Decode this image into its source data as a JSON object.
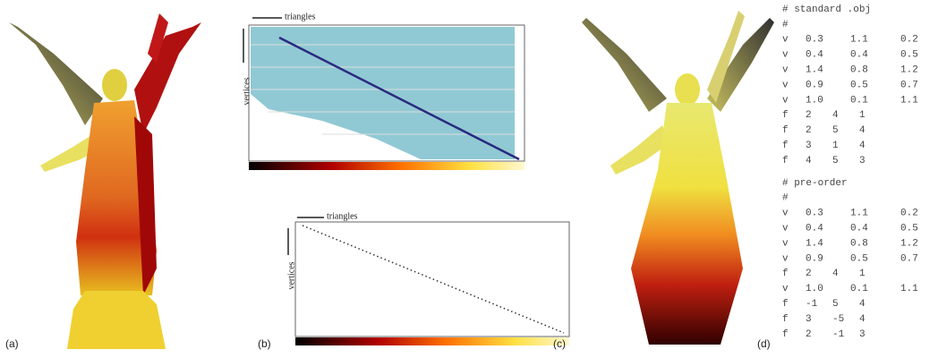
{
  "panels": [
    {
      "label": "(a)"
    },
    {
      "label": "(b)",
      "top_plot": {
        "x_label": "triangles",
        "y_label": "vertices"
      },
      "bottom_plot": {
        "x_label": "triangles",
        "y_label": "vertices"
      }
    },
    {
      "label": "(c)"
    },
    {
      "label": "(d)",
      "lines": [
        "# standard .obj",
        "#",
        [
          "v",
          "0.3",
          "1.1",
          "0.2"
        ],
        [
          "v",
          "0.4",
          "0.4",
          "0.5"
        ],
        [
          "v",
          "1.4",
          "0.8",
          "1.2"
        ],
        [
          "v",
          "0.9",
          "0.5",
          "0.7"
        ],
        [
          "v",
          "1.0",
          "0.1",
          "1.1"
        ],
        [
          "f",
          "2",
          "4",
          "1"
        ],
        [
          "f",
          "2",
          "5",
          "4"
        ],
        [
          "f",
          "3",
          "1",
          "4"
        ],
        [
          "f",
          "4",
          "5",
          "3"
        ],
        "# pre-order",
        "#",
        [
          "v",
          "0.3",
          "1.1",
          "0.2"
        ],
        [
          "v",
          "0.4",
          "0.4",
          "0.5"
        ],
        [
          "v",
          "1.4",
          "0.8",
          "1.2"
        ],
        [
          "v",
          "0.9",
          "0.5",
          "0.7"
        ],
        [
          "f",
          "2",
          "4",
          "1"
        ],
        [
          "v",
          "1.0",
          "0.1",
          "1.1"
        ],
        [
          "f",
          "-1",
          "5",
          "4"
        ],
        [
          "f",
          "3",
          "-5",
          "4"
        ],
        [
          "f",
          "2",
          "-1",
          "3"
        ]
      ]
    }
  ]
}
